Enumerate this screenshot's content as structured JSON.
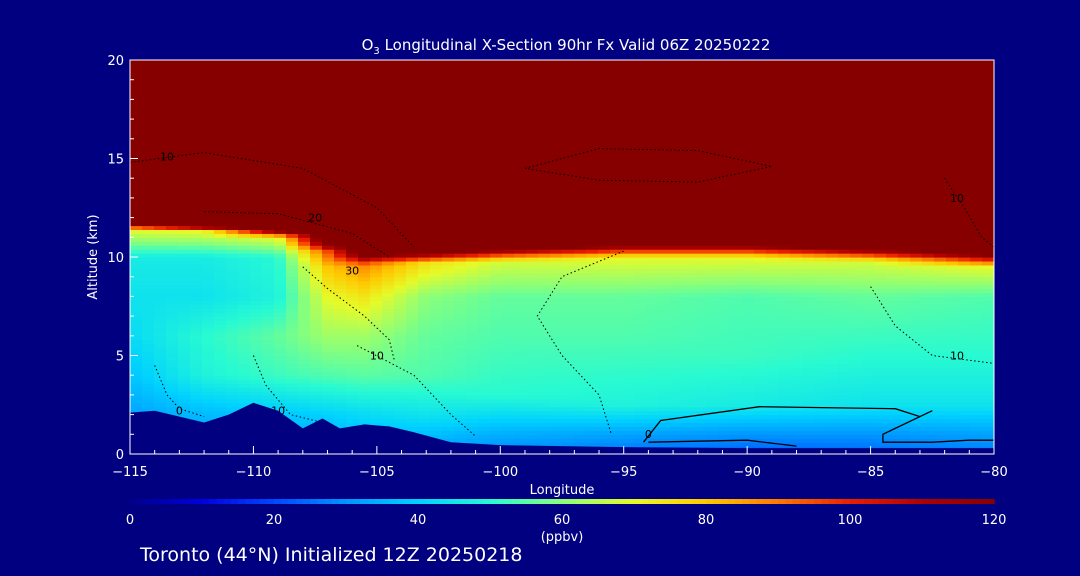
{
  "chart_data": {
    "type": "heatmap",
    "title_prefix": "O",
    "title_sub": "3",
    "title_rest": " Longitudinal X-Section 90hr  Fx Valid 06Z 20250222",
    "xlabel": "Longitude",
    "ylabel": "Altitude (km)",
    "xlim": [
      -115,
      -80
    ],
    "ylim": [
      0,
      20
    ],
    "x_ticks": [
      -115,
      -110,
      -105,
      -100,
      -95,
      -90,
      -85,
      -80
    ],
    "x_tick_labels": [
      "−115",
      "−110",
      "−105",
      "−100",
      "−95",
      "−90",
      "−85",
      "−80"
    ],
    "y_ticks": [
      0,
      5,
      10,
      15,
      20
    ],
    "y_tick_labels": [
      "0",
      "5",
      "10",
      "15",
      "20"
    ],
    "colorbar": {
      "range": [
        0,
        120
      ],
      "ticks": [
        0,
        20,
        40,
        60,
        80,
        100,
        120
      ],
      "tick_labels": [
        "0",
        "20",
        "40",
        "60",
        "80",
        "100",
        "120"
      ],
      "units": "(ppbv)"
    },
    "footer": "Toronto (44°N) Initialized 12Z 20250218",
    "field": {
      "note_units": "ppbv",
      "tropopause_km": [
        [
          -115,
          11.5
        ],
        [
          -112,
          11.5
        ],
        [
          -109,
          11.2
        ],
        [
          -107,
          10.6
        ],
        [
          -105.5,
          9.9
        ],
        [
          -104,
          10.0
        ],
        [
          -100,
          10.3
        ],
        [
          -95,
          10.5
        ],
        [
          -90,
          10.5
        ],
        [
          -85,
          10.3
        ],
        [
          -80,
          10.0
        ]
      ],
      "terrain_km": [
        [
          -115,
          2.1
        ],
        [
          -114,
          2.2
        ],
        [
          -113,
          1.9
        ],
        [
          -112,
          1.6
        ],
        [
          -111,
          2.0
        ],
        [
          -110,
          2.6
        ],
        [
          -109,
          2.2
        ],
        [
          -108,
          1.3
        ],
        [
          -107.2,
          1.8
        ],
        [
          -106.5,
          1.3
        ],
        [
          -105.5,
          1.5
        ],
        [
          -104.5,
          1.4
        ],
        [
          -103.5,
          1.1
        ],
        [
          -102,
          0.6
        ],
        [
          -100,
          0.45
        ],
        [
          -95,
          0.35
        ],
        [
          -90,
          0.3
        ],
        [
          -85,
          0.3
        ],
        [
          -80,
          0.3
        ]
      ],
      "columns": [
        {
          "lon": -115,
          "profile": [
            [
              0,
              30
            ],
            [
              2,
              32
            ],
            [
              4,
              38
            ],
            [
              6,
              42
            ],
            [
              8,
              44
            ],
            [
              10,
              46
            ],
            [
              11.4,
              70
            ],
            [
              11.7,
              130
            ]
          ]
        },
        {
          "lon": -112,
          "profile": [
            [
              0,
              32
            ],
            [
              2,
              36
            ],
            [
              4,
              48
            ],
            [
              6,
              50
            ],
            [
              8,
              44
            ],
            [
              10,
              46
            ],
            [
              11.3,
              70
            ],
            [
              11.6,
              130
            ]
          ]
        },
        {
          "lon": -109,
          "profile": [
            [
              0,
              30
            ],
            [
              2,
              38
            ],
            [
              4,
              52
            ],
            [
              6,
              56
            ],
            [
              8,
              48
            ],
            [
              10,
              50
            ],
            [
              11.0,
              70
            ],
            [
              11.4,
              130
            ]
          ]
        },
        {
          "lon": -107,
          "profile": [
            [
              0,
              30
            ],
            [
              2,
              40
            ],
            [
              4,
              54
            ],
            [
              6,
              62
            ],
            [
              8,
              70
            ],
            [
              9.5,
              80
            ],
            [
              10.3,
              95
            ],
            [
              10.8,
              130
            ]
          ]
        },
        {
          "lon": -105.5,
          "profile": [
            [
              0,
              32
            ],
            [
              2,
              42
            ],
            [
              4,
              55
            ],
            [
              6,
              62
            ],
            [
              8,
              74
            ],
            [
              9.6,
              88
            ],
            [
              10.2,
              130
            ]
          ]
        },
        {
          "lon": -103,
          "profile": [
            [
              0,
              30
            ],
            [
              2,
              44
            ],
            [
              4,
              54
            ],
            [
              6,
              56
            ],
            [
              8,
              60
            ],
            [
              9.7,
              75
            ],
            [
              10.3,
              130
            ]
          ]
        },
        {
          "lon": -100,
          "profile": [
            [
              0,
              28
            ],
            [
              1,
              34
            ],
            [
              3,
              50
            ],
            [
              6,
              54
            ],
            [
              8,
              56
            ],
            [
              9.8,
              68
            ],
            [
              10.5,
              130
            ]
          ]
        },
        {
          "lon": -95,
          "profile": [
            [
              0,
              25
            ],
            [
              1,
              32
            ],
            [
              2.5,
              48
            ],
            [
              6,
              54
            ],
            [
              8,
              56
            ],
            [
              10,
              70
            ],
            [
              10.7,
              130
            ]
          ]
        },
        {
          "lon": -90,
          "profile": [
            [
              0,
              22
            ],
            [
              1,
              30
            ],
            [
              2.5,
              46
            ],
            [
              5,
              52
            ],
            [
              8,
              54
            ],
            [
              10,
              70
            ],
            [
              10.7,
              130
            ]
          ]
        },
        {
          "lon": -85,
          "profile": [
            [
              0,
              24
            ],
            [
              1,
              30
            ],
            [
              2.5,
              44
            ],
            [
              5,
              50
            ],
            [
              8,
              56
            ],
            [
              9.8,
              68
            ],
            [
              10.5,
              130
            ]
          ]
        },
        {
          "lon": -80,
          "profile": [
            [
              0,
              26
            ],
            [
              1,
              32
            ],
            [
              2.5,
              44
            ],
            [
              5,
              50
            ],
            [
              8,
              54
            ],
            [
              9.5,
              70
            ],
            [
              10.2,
              130
            ]
          ]
        }
      ]
    },
    "contours": [
      {
        "value_label": "10",
        "style": "dotted",
        "label_at": [
          -113.5,
          14.9
        ],
        "points": [
          [
            -115,
            14.8
          ],
          [
            -112,
            15.3
          ],
          [
            -108,
            14.5
          ],
          [
            -105,
            12.5
          ],
          [
            -103.5,
            10.5
          ]
        ]
      },
      {
        "value_label": "20",
        "style": "dotted",
        "label_at": [
          -107.5,
          11.8
        ],
        "points": [
          [
            -112,
            12.3
          ],
          [
            -109,
            12.2
          ],
          [
            -106,
            11.2
          ],
          [
            -104.5,
            10.0
          ]
        ]
      },
      {
        "value_label": "30",
        "style": "dotted",
        "label_at": [
          -106.0,
          9.1
        ],
        "points": [
          [
            -108,
            9.5
          ],
          [
            -107,
            8.4
          ],
          [
            -105.5,
            7.0
          ],
          [
            -104.5,
            5.8
          ],
          [
            -104.3,
            4.8
          ]
        ]
      },
      {
        "value_label": "10",
        "style": "dotted",
        "label_at": [
          -105.0,
          4.8
        ],
        "points": [
          [
            -105.8,
            5.5
          ],
          [
            -103.5,
            4.0
          ],
          [
            -102.0,
            2.0
          ],
          [
            -101.0,
            0.9
          ]
        ]
      },
      {
        "value_label": "10",
        "style": "dotted",
        "label_at": [
          -109.0,
          2.0
        ],
        "points": [
          [
            -110,
            5.0
          ],
          [
            -109.5,
            3.5
          ],
          [
            -108.5,
            2.0
          ],
          [
            -107.2,
            1.6
          ]
        ]
      },
      {
        "value_label": "0",
        "style": "dotted",
        "label_at": [
          -113.0,
          2.0
        ],
        "points": [
          [
            -114,
            4.5
          ],
          [
            -113.5,
            3.0
          ],
          [
            -113,
            2.3
          ],
          [
            -112,
            1.9
          ]
        ]
      },
      {
        "value_label": "10",
        "style": "dotted",
        "label_at": [
          -81.5,
          4.8
        ],
        "points": [
          [
            -85,
            8.5
          ],
          [
            -84,
            6.5
          ],
          [
            -82.5,
            5.0
          ],
          [
            -80,
            4.6
          ]
        ]
      },
      {
        "value_label": "10",
        "style": "dotted",
        "label_at": [
          -81.5,
          12.8
        ],
        "points": [
          [
            -82,
            14.0
          ],
          [
            -81.2,
            12.5
          ],
          [
            -80.5,
            11.0
          ],
          [
            -80,
            10.5
          ]
        ]
      },
      {
        "value_label": "",
        "style": "dotted",
        "label_at": [
          -95,
          15
        ],
        "points": [
          [
            -99,
            14.5
          ],
          [
            -96,
            15.5
          ],
          [
            -92,
            15.4
          ],
          [
            -89,
            14.6
          ],
          [
            -92,
            13.8
          ],
          [
            -96,
            13.9
          ],
          [
            -99,
            14.5
          ]
        ]
      },
      {
        "value_label": "",
        "style": "dotted",
        "label_at": [
          -96,
          6
        ],
        "points": [
          [
            -95,
            10.3
          ],
          [
            -97.5,
            9.0
          ],
          [
            -98.5,
            7.0
          ],
          [
            -97.5,
            5.0
          ],
          [
            -96.0,
            3.0
          ],
          [
            -95.5,
            1.0
          ]
        ]
      },
      {
        "value_label": "0",
        "style": "solid",
        "label_at": [
          -94.0,
          0.8
        ],
        "points": [
          [
            -94.2,
            0.6
          ],
          [
            -93.5,
            1.7
          ],
          [
            -89.5,
            2.4
          ],
          [
            -84,
            2.3
          ],
          [
            -83,
            1.9
          ],
          [
            -82.5,
            2.2
          ],
          [
            -84.5,
            1.0
          ],
          [
            -84.5,
            0.6
          ],
          [
            -82.5,
            0.6
          ],
          [
            -81,
            0.7
          ],
          [
            -80,
            0.7
          ]
        ]
      },
      {
        "value_label": "",
        "style": "solid",
        "label_at": [
          -92,
          0.6
        ],
        "points": [
          [
            -94,
            0.6
          ],
          [
            -90,
            0.7
          ],
          [
            -88,
            0.4
          ]
        ]
      }
    ]
  }
}
